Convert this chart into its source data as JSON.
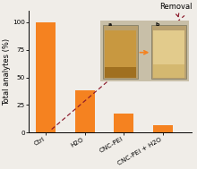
{
  "categories": [
    "Ctrl",
    "H2O",
    "CNC-PEI",
    "CNC-PEI + H2O"
  ],
  "values": [
    100,
    38,
    17,
    7
  ],
  "bar_color": "#F58220",
  "ylabel": "Total analytes (%)",
  "ylim": [
    0,
    110
  ],
  "yticks": [
    0,
    25,
    50,
    75,
    100
  ],
  "annotation_text": "Removal",
  "dashed_line_color": "#8B1A2B",
  "bg_color": "#f0ede8",
  "axis_fontsize": 6.0,
  "tick_fontsize": 5.2,
  "bar_width": 0.5
}
